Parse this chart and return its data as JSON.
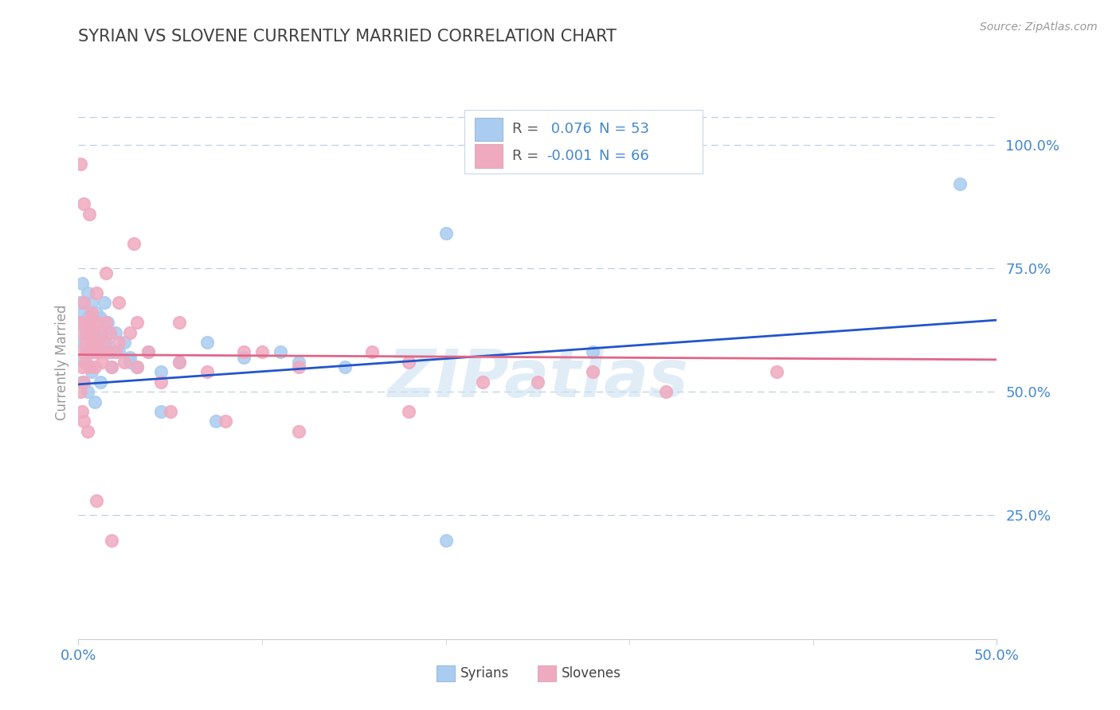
{
  "title": "SYRIAN VS SLOVENE CURRENTLY MARRIED CORRELATION CHART",
  "source": "Source: ZipAtlas.com",
  "ylabel": "Currently Married",
  "xlim": [
    0.0,
    0.5
  ],
  "ylim": [
    0.0,
    1.1
  ],
  "yticks": [
    0.25,
    0.5,
    0.75,
    1.0
  ],
  "ytick_labels": [
    "25.0%",
    "50.0%",
    "75.0%",
    "100.0%"
  ],
  "xtick_pos": [
    0.0,
    0.5
  ],
  "xtick_labels": [
    "0.0%",
    "50.0%"
  ],
  "legend_r_syrian": " 0.076",
  "legend_n_syrian": "53",
  "legend_r_slovene": "-0.001",
  "legend_n_slovene": "66",
  "syrian_color": "#aaccf0",
  "slovene_color": "#f0aac0",
  "syrian_line_color": "#2255cc",
  "slovene_line_color": "#e06688",
  "background_color": "#ffffff",
  "grid_color": "#b8cce4",
  "title_color": "#404040",
  "axis_label_color": "#4488cc",
  "watermark": "ZIPatlas",
  "syrian_line_y0": 0.515,
  "syrian_line_y1": 0.645,
  "slovene_line_y0": 0.575,
  "slovene_line_y1": 0.565,
  "syrian_x": [
    0.001,
    0.002,
    0.002,
    0.003,
    0.003,
    0.004,
    0.004,
    0.005,
    0.005,
    0.006,
    0.006,
    0.007,
    0.007,
    0.008,
    0.008,
    0.009,
    0.01,
    0.01,
    0.011,
    0.012,
    0.013,
    0.014,
    0.015,
    0.016,
    0.017,
    0.018,
    0.02,
    0.022,
    0.025,
    0.028,
    0.032,
    0.038,
    0.045,
    0.055,
    0.07,
    0.09,
    0.11,
    0.145,
    0.2,
    0.28,
    0.002,
    0.003,
    0.005,
    0.007,
    0.009,
    0.012,
    0.018,
    0.028,
    0.045,
    0.075,
    0.12,
    0.2,
    0.48
  ],
  "syrian_y": [
    0.68,
    0.72,
    0.64,
    0.6,
    0.66,
    0.58,
    0.62,
    0.65,
    0.7,
    0.55,
    0.63,
    0.68,
    0.59,
    0.62,
    0.64,
    0.6,
    0.66,
    0.58,
    0.61,
    0.65,
    0.62,
    0.68,
    0.6,
    0.64,
    0.58,
    0.55,
    0.62,
    0.58,
    0.6,
    0.57,
    0.55,
    0.58,
    0.54,
    0.56,
    0.6,
    0.57,
    0.58,
    0.55,
    0.2,
    0.58,
    0.52,
    0.56,
    0.5,
    0.54,
    0.48,
    0.52,
    0.58,
    0.56,
    0.46,
    0.44,
    0.56,
    0.82,
    0.92
  ],
  "slovene_x": [
    0.001,
    0.001,
    0.002,
    0.002,
    0.003,
    0.003,
    0.004,
    0.004,
    0.005,
    0.005,
    0.006,
    0.006,
    0.007,
    0.007,
    0.008,
    0.008,
    0.009,
    0.01,
    0.01,
    0.011,
    0.012,
    0.013,
    0.014,
    0.015,
    0.016,
    0.017,
    0.018,
    0.02,
    0.022,
    0.025,
    0.028,
    0.032,
    0.038,
    0.045,
    0.055,
    0.07,
    0.09,
    0.12,
    0.16,
    0.22,
    0.001,
    0.002,
    0.003,
    0.005,
    0.007,
    0.01,
    0.015,
    0.022,
    0.032,
    0.05,
    0.08,
    0.12,
    0.18,
    0.25,
    0.32,
    0.38,
    0.28,
    0.18,
    0.1,
    0.055,
    0.03,
    0.018,
    0.01,
    0.006,
    0.003,
    0.001
  ],
  "slovene_y": [
    0.64,
    0.58,
    0.62,
    0.55,
    0.68,
    0.52,
    0.6,
    0.56,
    0.64,
    0.58,
    0.62,
    0.55,
    0.6,
    0.65,
    0.58,
    0.62,
    0.55,
    0.6,
    0.64,
    0.58,
    0.62,
    0.56,
    0.6,
    0.64,
    0.58,
    0.62,
    0.55,
    0.58,
    0.6,
    0.56,
    0.62,
    0.55,
    0.58,
    0.52,
    0.56,
    0.54,
    0.58,
    0.55,
    0.58,
    0.52,
    0.5,
    0.46,
    0.44,
    0.42,
    0.66,
    0.7,
    0.74,
    0.68,
    0.64,
    0.46,
    0.44,
    0.42,
    0.46,
    0.52,
    0.5,
    0.54,
    0.54,
    0.56,
    0.58,
    0.64,
    0.8,
    0.2,
    0.28,
    0.86,
    0.88,
    0.96
  ]
}
